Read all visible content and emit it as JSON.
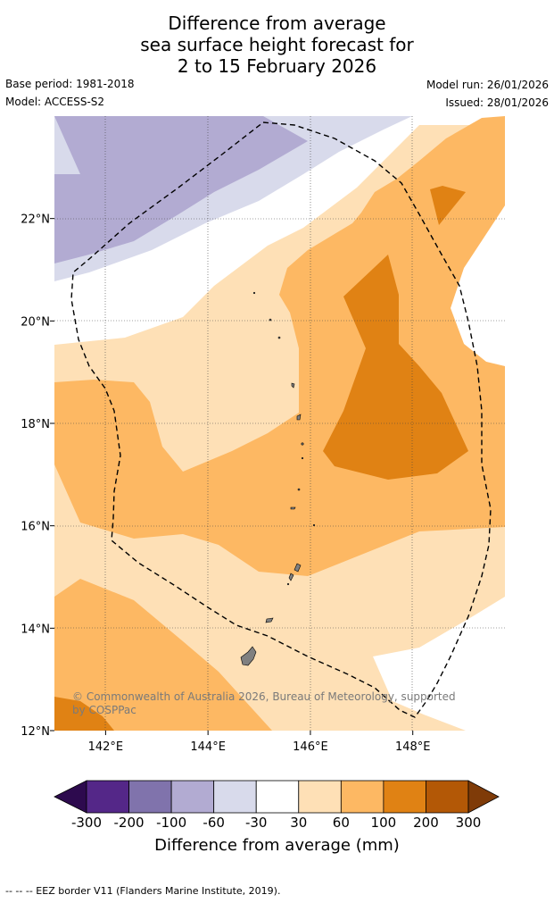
{
  "title": {
    "line1": "Difference from average",
    "line2": "sea surface height forecast for",
    "line3": "2 to 15 February 2026"
  },
  "meta": {
    "base_period": "Base period: 1981-2018",
    "model": "Model: ACCESS-S2",
    "model_run": "Model run: 26/01/2026",
    "issued": "Issued: 28/01/2026"
  },
  "map": {
    "lon_range": [
      141.0,
      149.8
    ],
    "lat_range": [
      12.0,
      24.0
    ],
    "x_ticks": [
      {
        "value": 142,
        "label": "142°E"
      },
      {
        "value": 144,
        "label": "144°E"
      },
      {
        "value": 146,
        "label": "146°E"
      },
      {
        "value": 148,
        "label": "148°E"
      }
    ],
    "y_ticks": [
      {
        "value": 12,
        "label": "12°N"
      },
      {
        "value": 14,
        "label": "14°N"
      },
      {
        "value": 16,
        "label": "16°N"
      },
      {
        "value": 18,
        "label": "18°N"
      },
      {
        "value": 20,
        "label": "20°N"
      },
      {
        "value": 22,
        "label": "22°N"
      }
    ],
    "gridlines": true,
    "copyright_line1": "© Commonwealth of Australia 2026, Bureau of Meteorology, supported",
    "copyright_line2": "by COSPPac",
    "eez_border_style": "dashed",
    "land_color": "#808080"
  },
  "colorbar": {
    "title": "Difference from average (mm)",
    "labels": [
      "-300",
      "-200",
      "-100",
      "-60",
      "-30",
      "30",
      "60",
      "100",
      "200",
      "300"
    ],
    "colors": [
      "#2d0a4e",
      "#542788",
      "#8073ac",
      "#b2abd2",
      "#d8daeb",
      "#ffffff",
      "#fee0b6",
      "#fdb863",
      "#e08214",
      "#b35806",
      "#7f3b08"
    ]
  },
  "footer": "--  --  -- EEZ border V11 (Flanders Marine Institute, 2019)."
}
